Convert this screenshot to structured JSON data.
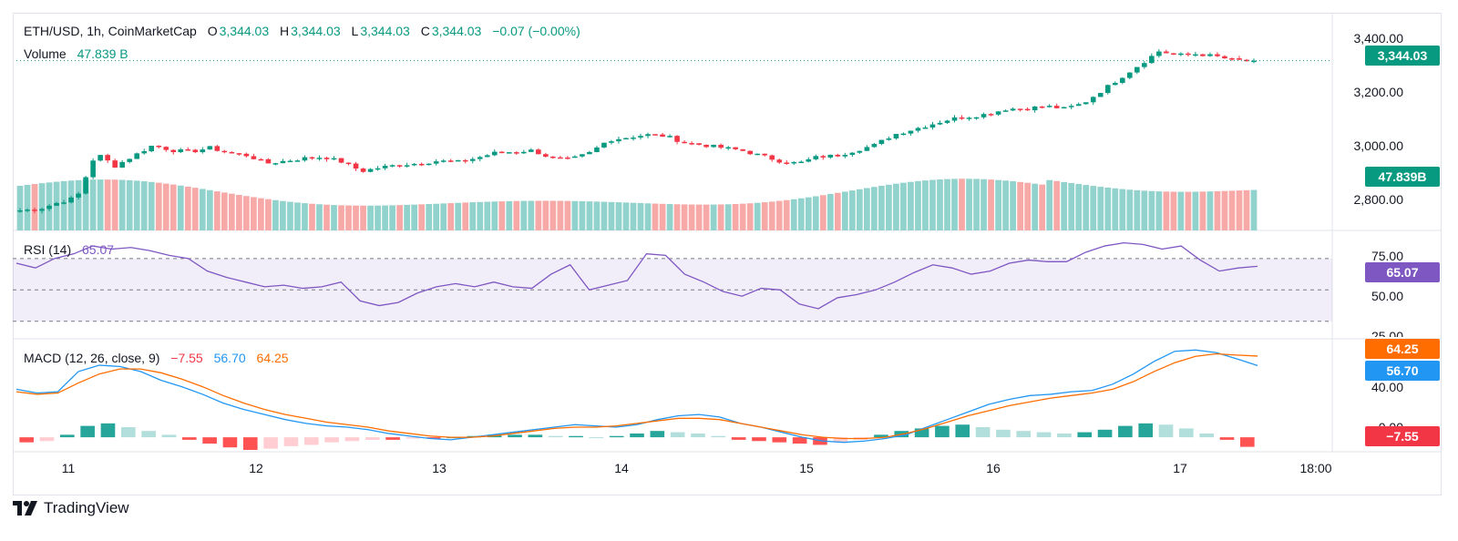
{
  "header": {
    "symbol": "ETH/USD, 1h, CoinMarketCap",
    "o_label": "O",
    "o_value": "3,344.03",
    "h_label": "H",
    "h_value": "3,344.03",
    "l_label": "L",
    "l_value": "3,344.03",
    "c_label": "C",
    "c_value": "3,344.03",
    "change": "−0.07 (−0.00%)",
    "volume_label": "Volume",
    "volume_value": "47.839 B"
  },
  "rsi_legend": {
    "label": "RSI (14)",
    "value": "65.07"
  },
  "macd_legend": {
    "label": "MACD (12, 26, close, 9)",
    "hist": "−7.55",
    "macd": "56.70",
    "signal": "64.25"
  },
  "price_axis": [
    "3,400.00",
    "3,200.00",
    "3,000.00",
    "2,800.00"
  ],
  "rsi_axis": [
    "75.00",
    "50.00",
    "25.00"
  ],
  "macd_axis": [
    "40.00",
    "0.00"
  ],
  "tags": {
    "price": "3,344.03",
    "volume": "47.839B",
    "rsi": "65.07",
    "macd_signal": "64.25",
    "macd_line": "56.70",
    "macd_hist": "−7.55"
  },
  "x_axis": [
    "11",
    "12",
    "13",
    "14",
    "15",
    "16",
    "17",
    "18:00"
  ],
  "brand": "TradingView",
  "colors": {
    "up": "#089981",
    "down": "#f23645",
    "vol_up": "#92d2cc",
    "vol_down": "#f7a9a7",
    "rsi": "#7e57c2",
    "macd": "#2196f3",
    "signal": "#ff6d00"
  },
  "chart_data": [
    {
      "type": "candlestick",
      "title": "ETH/USD, 1h, CoinMarketCap",
      "x": [
        "11",
        "12",
        "13",
        "14",
        "15",
        "16",
        "17",
        "18:00"
      ],
      "ylim": [
        2700,
        3430
      ],
      "close_anchors": [
        2770,
        2775,
        2800,
        2820,
        2990,
        2940,
        2980,
        3020,
        3000,
        2995,
        3010,
        2990,
        2980,
        2950,
        2960,
        2970,
        2975,
        2955,
        2920,
        2935,
        2945,
        2950,
        2960,
        2955,
        2970,
        2990,
        2995,
        3000,
        2970,
        2965,
        2990,
        3040,
        3050,
        3060,
        3055,
        3030,
        3020,
        3010,
        3000,
        2980,
        2960,
        2950,
        2975,
        2980,
        3000,
        3020,
        3060,
        3080,
        3100,
        3120,
        3130,
        3140,
        3160,
        3160,
        3170,
        3160,
        3180,
        3230,
        3280,
        3330,
        3380,
        3365,
        3370,
        3360,
        3345,
        3344.03
      ]
    },
    {
      "type": "bar",
      "title": "Volume",
      "unit": "B",
      "last_value": 47.839
    },
    {
      "type": "line",
      "title": "RSI (14)",
      "ylim": [
        20,
        85
      ],
      "levels": [
        70,
        50,
        30
      ],
      "values": [
        67,
        64,
        70,
        73,
        78,
        76,
        77,
        75,
        72,
        70,
        62,
        58,
        55,
        52,
        53,
        51,
        52,
        55,
        43,
        40,
        42,
        48,
        52,
        54,
        52,
        55,
        52,
        51,
        60,
        66,
        50,
        53,
        56,
        73,
        72,
        60,
        55,
        49,
        46,
        51,
        50,
        41,
        38,
        45,
        47,
        50,
        55,
        61,
        66,
        64,
        60,
        62,
        67,
        69,
        68,
        68,
        74,
        78,
        80,
        79,
        76,
        78,
        69,
        62,
        64,
        65.07
      ],
      "last_value": 65.07
    },
    {
      "type": "line",
      "title": "MACD (12, 26, close, 9)",
      "ylim": [
        -10,
        75
      ],
      "series": [
        {
          "name": "MACD",
          "values": [
            38,
            35,
            36,
            52,
            57,
            56,
            52,
            45,
            40,
            34,
            27,
            22,
            18,
            14,
            11,
            9,
            8,
            6,
            3,
            1,
            -1,
            -2,
            0,
            2,
            4,
            6,
            8,
            10,
            9,
            8,
            10,
            14,
            17,
            18,
            16,
            11,
            8,
            4,
            0,
            -3,
            -4,
            -3,
            -1,
            2,
            8,
            14,
            20,
            26,
            30,
            33,
            34,
            36,
            37,
            42,
            50,
            60,
            68,
            69,
            67,
            62,
            56.7
          ]
        },
        {
          "name": "Signal",
          "values": [
            36,
            34,
            35,
            43,
            50,
            54,
            54,
            51,
            46,
            40,
            33,
            27,
            22,
            18,
            15,
            12,
            10,
            8,
            5,
            3,
            1,
            0,
            0,
            1,
            3,
            5,
            7,
            8,
            8,
            9,
            11,
            13,
            15,
            15,
            14,
            11,
            8,
            5,
            2,
            0,
            -1,
            -1,
            0,
            3,
            7,
            12,
            17,
            21,
            25,
            28,
            31,
            33,
            35,
            38,
            44,
            52,
            59,
            64,
            66,
            65,
            64.25
          ]
        }
      ],
      "histogram": [
        -4,
        -3,
        2,
        9,
        11,
        8,
        5,
        2,
        -2,
        -5,
        -8,
        -10,
        -9,
        -7,
        -6,
        -4,
        -3,
        -2,
        -2,
        -1,
        -1,
        0,
        1,
        2,
        2,
        2,
        1,
        1,
        0,
        1,
        3,
        5,
        4,
        3,
        1,
        -2,
        -3,
        -4,
        -5,
        -6,
        -4,
        -2,
        2,
        5,
        7,
        9,
        10,
        8,
        6,
        5,
        4,
        3,
        4,
        6,
        9,
        11,
        10,
        7,
        3,
        -2,
        -7.55
      ]
    }
  ]
}
